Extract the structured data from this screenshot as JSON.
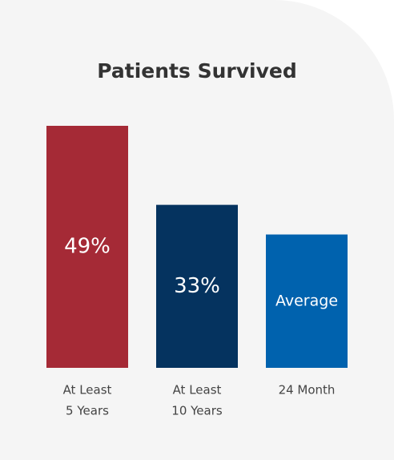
{
  "chart_data": {
    "type": "bar",
    "title": "Patients Survived",
    "categories": [
      [
        "At Least",
        "5 Years"
      ],
      [
        "At Least",
        "10 Years"
      ],
      [
        "24 Month"
      ]
    ],
    "values": [
      49,
      33,
      27
    ],
    "value_labels": [
      "49%",
      "33%",
      "Average"
    ],
    "colors": [
      "#a52a36",
      "#05335f",
      "#0062ae"
    ]
  }
}
